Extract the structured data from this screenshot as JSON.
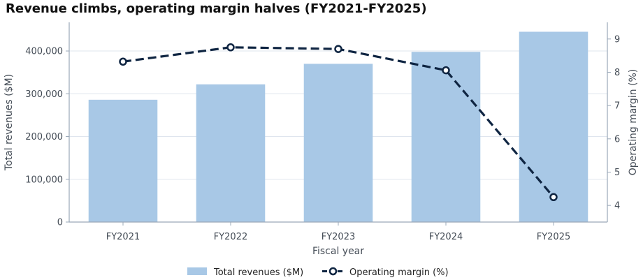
{
  "chart_data": {
    "type": "bar",
    "title": "Revenue climbs, operating margin halves (FY2021-FY2025)",
    "xlabel": "Fiscal year",
    "ylabel": "Total revenues ($M)",
    "y2label": "Operating margin (%)",
    "categories": [
      "FY2021",
      "FY2022",
      "FY2023",
      "FY2024",
      "FY2025"
    ],
    "ylim": [
      0,
      467000
    ],
    "y2lim": [
      3.5,
      9.5
    ],
    "yticks": [
      {
        "value": 0,
        "label": "0"
      },
      {
        "value": 100000,
        "label": "100,000"
      },
      {
        "value": 200000,
        "label": "200,000"
      },
      {
        "value": 300000,
        "label": "300,000"
      },
      {
        "value": 400000,
        "label": "400,000"
      }
    ],
    "y2ticks": [
      {
        "value": 4,
        "label": "4"
      },
      {
        "value": 5,
        "label": "5"
      },
      {
        "value": 6,
        "label": "6"
      },
      {
        "value": 7,
        "label": "7"
      },
      {
        "value": 8,
        "label": "8"
      },
      {
        "value": 9,
        "label": "9"
      }
    ],
    "grid": true,
    "legend_position": "bottom-center",
    "series": [
      {
        "name": "Total revenues ($M)",
        "type": "bar",
        "axis": "left",
        "values": [
          286000,
          322000,
          370000,
          398000,
          445000
        ],
        "color": "#a8c8e6"
      },
      {
        "name": "Operating margin (%)",
        "type": "line",
        "axis": "right",
        "style": "dashed",
        "values": [
          8.32,
          8.75,
          8.7,
          8.06,
          4.25
        ],
        "color": "#0f2542"
      }
    ]
  }
}
